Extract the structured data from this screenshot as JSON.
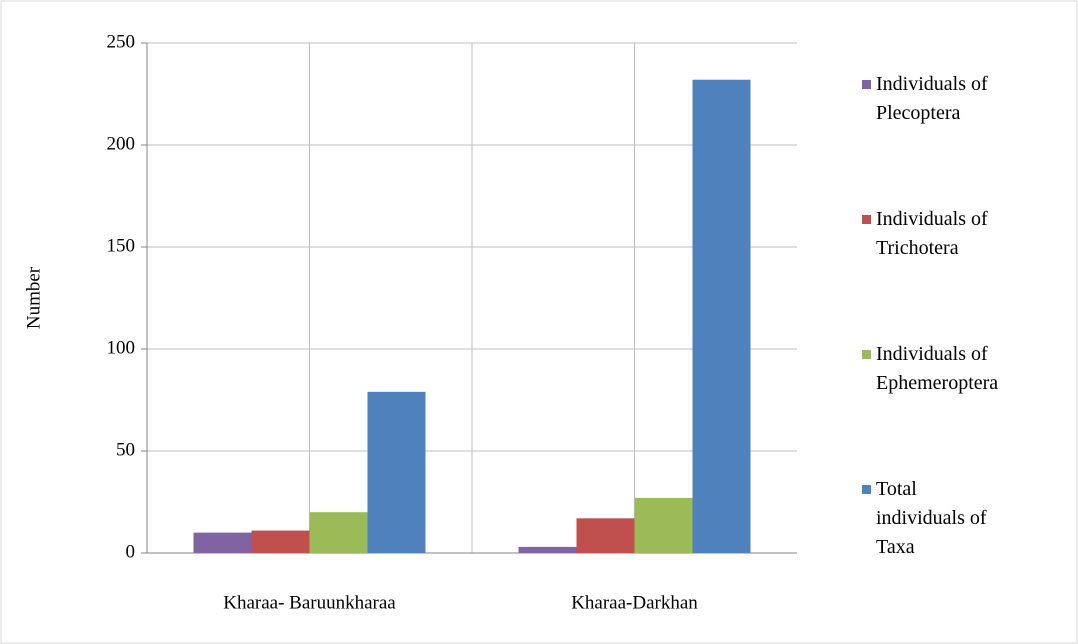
{
  "chart_data": {
    "type": "bar",
    "categories": [
      "Kharaa- Baruunkharaa",
      "Kharaa-Darkhan"
    ],
    "series": [
      {
        "name": "Individuals of Plecoptera",
        "color": "#8064a2",
        "values": [
          10,
          3
        ]
      },
      {
        "name": "Individuals of Trichotera",
        "color": "#c0504d",
        "values": [
          11,
          17
        ]
      },
      {
        "name": "Individuals of Ephemeroptera",
        "color": "#9bbb59",
        "values": [
          20,
          27
        ]
      },
      {
        "name": "Total individuals of Taxa",
        "color": "#4f81bd",
        "values": [
          79,
          232
        ]
      }
    ],
    "ylabel": "Number",
    "ylim": [
      0,
      250
    ],
    "yticks": [
      0,
      50,
      100,
      150,
      200,
      250
    ],
    "grid": true,
    "legend": "right"
  }
}
